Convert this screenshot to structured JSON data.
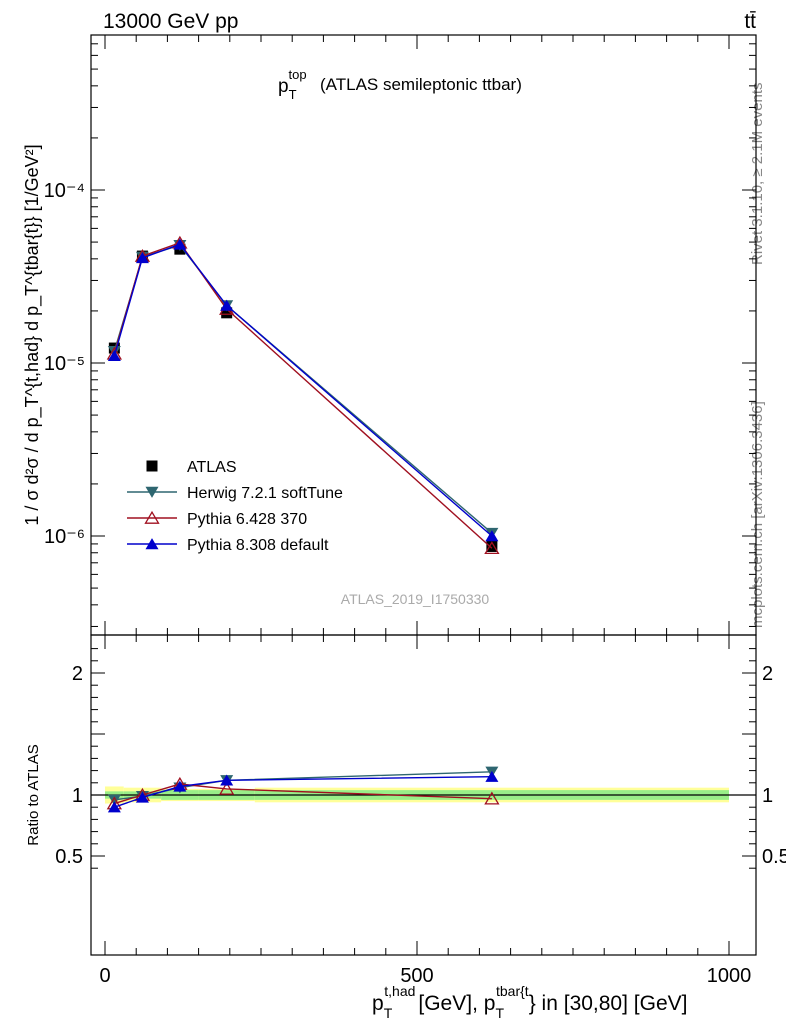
{
  "header": {
    "energy_label": "13000 GeV pp",
    "process_label": "tt̄"
  },
  "side_labels": {
    "rivet": "Rivet 3.1.10, ≥ 2.1M events",
    "mcplots": "mcplots.cern.ch [arXiv:1306.3436]"
  },
  "chart_data": {
    "type": "line",
    "title_main": "p",
    "title_sup": "top",
    "title_sub": "T",
    "title_rest": "(ATLAS semileptonic ttbar)",
    "watermark": "ATLAS_2019_I1750330",
    "ylabel": "1 / σ d²σ / d p_T^{t,had} d p_T^{tbar{t}} [1/GeV²]",
    "xlabel_text": "[GeV], p",
    "xlabel_rest": "} in [30,80] [GeV]",
    "xlabel_sup1": "t,had",
    "xlabel_sup2": "tbar{t",
    "xlabel_sub": "T",
    "ratio_ylabel": "Ratio to ATLAS",
    "xlim": [
      0,
      1000
    ],
    "ylim_log": [
      2.8e-07,
      0.0009
    ],
    "ratio_ylim": [
      0.3,
      2.3
    ],
    "x_ticks": [
      "0",
      "500",
      "1000"
    ],
    "y_ticks": [
      "10⁻⁶",
      "10⁻⁵",
      "10⁻⁴"
    ],
    "ratio_ticks": [
      "0.5",
      "1",
      "2"
    ],
    "x": [
      15,
      60,
      120,
      195,
      620
    ],
    "bins": [
      [
        0,
        30
      ],
      [
        30,
        90
      ],
      [
        90,
        150
      ],
      [
        150,
        240
      ],
      [
        240,
        1000
      ]
    ],
    "band_inner": [
      0.03,
      0.03,
      0.04,
      0.04,
      0.04
    ],
    "band_outer": [
      0.07,
      0.06,
      0.05,
      0.05,
      0.06
    ],
    "series": [
      {
        "name": "ATLAS",
        "marker": "square",
        "color": "#000000",
        "values": [
          1.22e-05,
          4.15e-05,
          4.55e-05,
          1.95e-05,
          8.7e-07
        ],
        "ratio": [
          1.0,
          1.0,
          1.0,
          1.0,
          1.0
        ]
      },
      {
        "name": "Herwig 7.2.1 softTune",
        "marker": "triangle-down",
        "color": "#2e6670",
        "values": [
          1.17e-05,
          4.1e-05,
          4.8e-05,
          2.15e-05,
          1.04e-06
        ],
        "ratio": [
          0.96,
          0.99,
          1.06,
          1.12,
          1.19
        ]
      },
      {
        "name": "Pythia 6.428 370",
        "marker": "triangle-open",
        "color": "#a01020",
        "values": [
          1.13e-05,
          4.15e-05,
          4.95e-05,
          2.05e-05,
          8.5e-07
        ],
        "ratio": [
          0.93,
          1.0,
          1.09,
          1.05,
          0.97
        ]
      },
      {
        "name": "Pythia 8.308 default",
        "marker": "triangle-up",
        "color": "#0000cc",
        "values": [
          1.1e-05,
          4.05e-05,
          4.85e-05,
          2.15e-05,
          1e-06
        ],
        "ratio": [
          0.9,
          0.98,
          1.07,
          1.12,
          1.15
        ]
      }
    ]
  }
}
